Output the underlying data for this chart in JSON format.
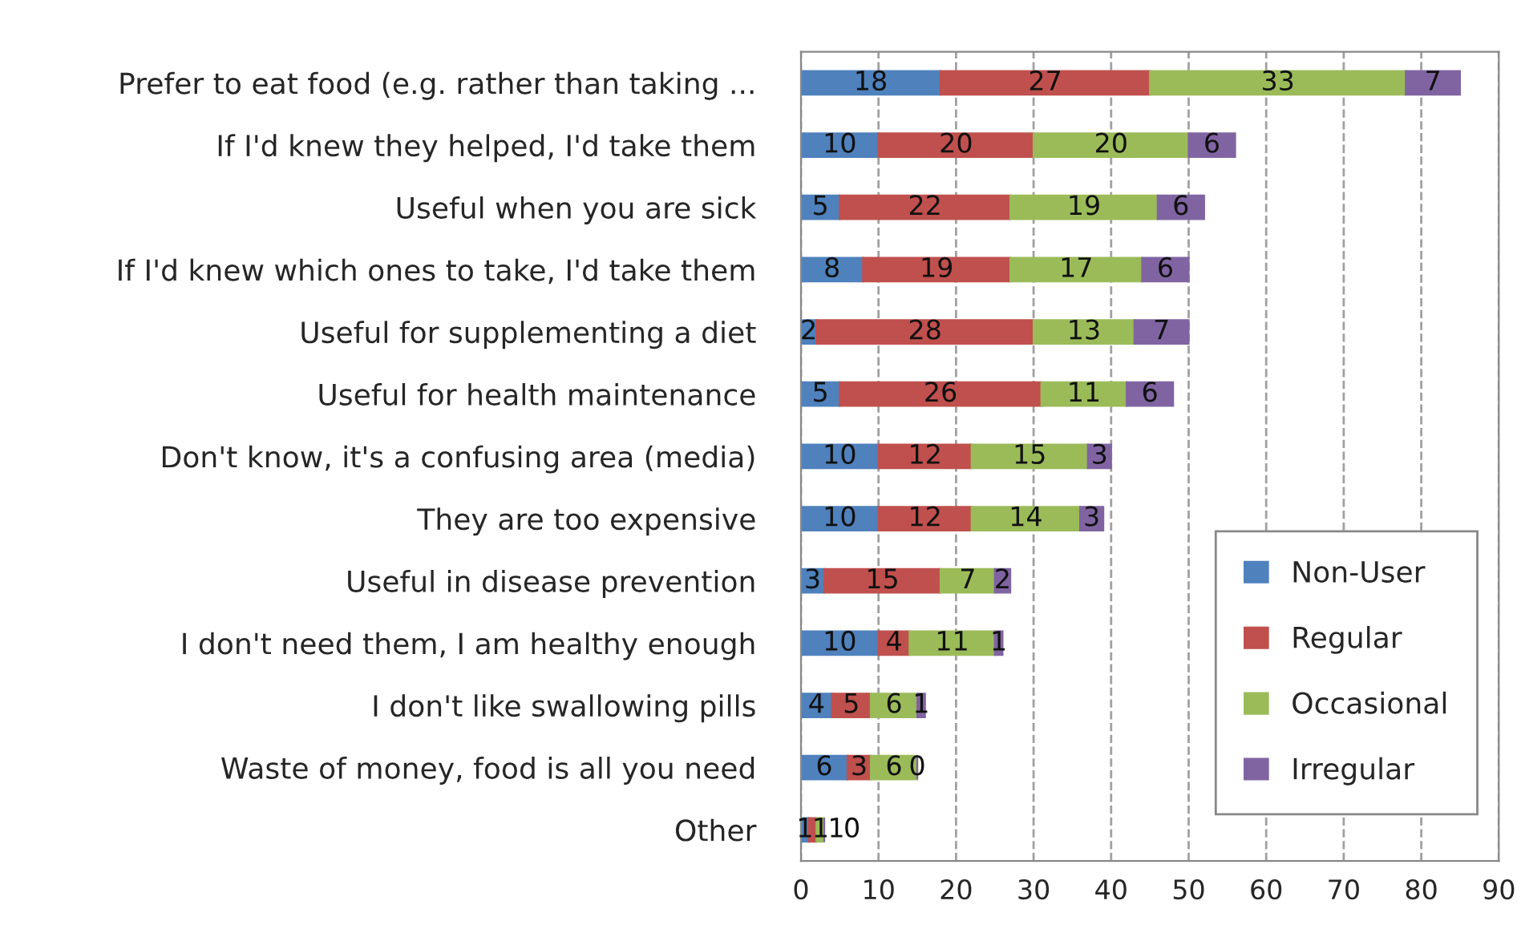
{
  "chart_data": {
    "type": "bar",
    "orientation": "horizontal",
    "stacked": true,
    "data_labels": true,
    "grid": "x",
    "legend": "bottom right",
    "categories": [
      "Prefer to eat food (e.g. rather than taking ...",
      "If I'd knew they helped, I'd take them",
      "Useful when you are sick",
      "If I'd knew which ones to take, I'd take them",
      "Useful for supplementing a diet",
      "Useful for health maintenance",
      "Don't know, it's a confusing area (media)",
      "They are too expensive",
      "Useful in disease prevention",
      "I don't need them, I am healthy enough",
      "I don't like swallowing pills",
      "Waste of money, food is all you need",
      "Other"
    ],
    "series": [
      {
        "name": "Non-User",
        "color": "#4f81bd",
        "values": [
          18,
          10,
          5,
          8,
          2,
          5,
          10,
          10,
          3,
          10,
          4,
          6,
          1
        ]
      },
      {
        "name": "Regular",
        "color": "#c0504d",
        "values": [
          27,
          20,
          22,
          19,
          28,
          26,
          12,
          12,
          15,
          4,
          5,
          3,
          1
        ]
      },
      {
        "name": "Occasional",
        "color": "#9bbb59",
        "values": [
          33,
          20,
          19,
          17,
          13,
          11,
          15,
          14,
          7,
          11,
          6,
          6,
          1
        ]
      },
      {
        "name": "Irregular",
        "color": "#8064a2",
        "values": [
          7,
          6,
          6,
          6,
          7,
          6,
          3,
          3,
          2,
          1,
          1,
          0,
          0
        ]
      }
    ],
    "xlim": [
      0,
      90
    ],
    "xticks": [
      0,
      10,
      20,
      30,
      40,
      50,
      60,
      70,
      80,
      90
    ]
  }
}
